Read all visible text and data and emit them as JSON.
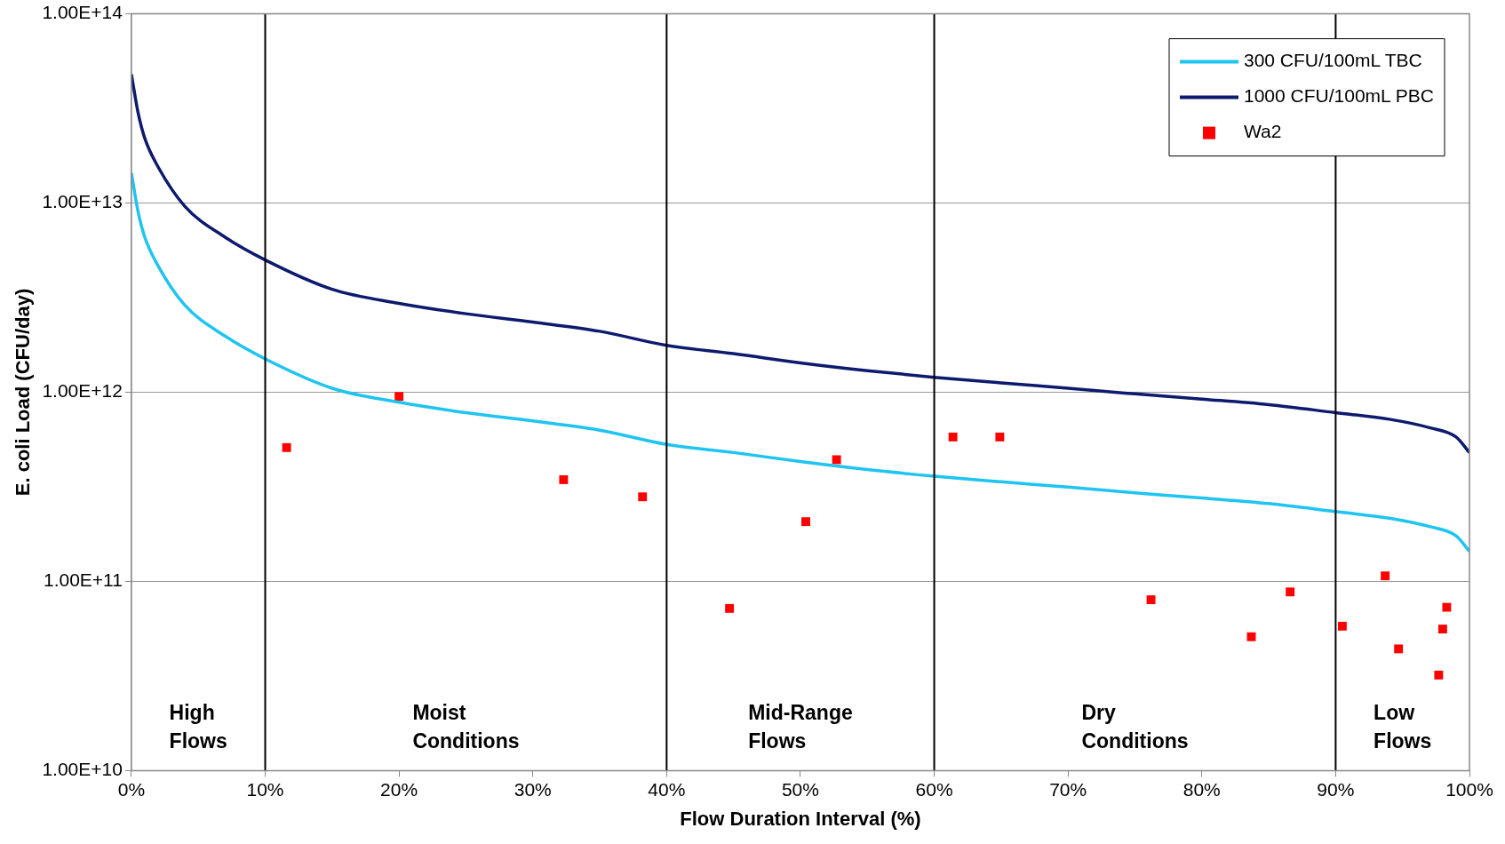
{
  "chart_data": {
    "type": "line",
    "xlabel": "Flow Duration Interval (%)",
    "ylabel": "E. coli Load (CFU/day)",
    "xlim": [
      0,
      100
    ],
    "xticks": [
      {
        "value": 0,
        "label": "0%"
      },
      {
        "value": 10,
        "label": "10%"
      },
      {
        "value": 20,
        "label": "20%"
      },
      {
        "value": 30,
        "label": "30%"
      },
      {
        "value": 40,
        "label": "40%"
      },
      {
        "value": 50,
        "label": "50%"
      },
      {
        "value": 60,
        "label": "60%"
      },
      {
        "value": 70,
        "label": "70%"
      },
      {
        "value": 80,
        "label": "80%"
      },
      {
        "value": 90,
        "label": "90%"
      },
      {
        "value": 100,
        "label": "100%"
      }
    ],
    "ylim": [
      10000000000.0,
      100000000000000.0
    ],
    "yticks": [
      {
        "value": 10000000000.0,
        "label": "1.00E+10"
      },
      {
        "value": 100000000000.0,
        "label": "1.00E+11"
      },
      {
        "value": 1000000000000.0,
        "label": "1.00E+12"
      },
      {
        "value": 10000000000000.0,
        "label": "1.00E+13"
      },
      {
        "value": 100000000000000.0,
        "label": "1.00E+14"
      }
    ],
    "log": "y",
    "grid": "y",
    "legend": "top right",
    "series": [
      {
        "name": "300 CFU/100mL TBC",
        "type": "line",
        "color": "#1fc4f0",
        "x": [
          0,
          0.5,
          1,
          2,
          4,
          7,
          10,
          15,
          20,
          25,
          30,
          35,
          40,
          45,
          50,
          55,
          60,
          65,
          70,
          75,
          80,
          85,
          90,
          94,
          97,
          99,
          100
        ],
        "values": [
          14400000000000.0,
          9000000000000.0,
          6600000000000.0,
          4650000000000.0,
          2880000000000.0,
          1980000000000.0,
          1500000000000.0,
          1050000000000.0,
          885000000000.0,
          780000000000.0,
          705000000000.0,
          630000000000.0,
          530000000000.0,
          480000000000.0,
          430000000000.0,
          390000000000.0,
          360000000000.0,
          336000000000.0,
          315000000000.0,
          294000000000.0,
          276000000000.0,
          258000000000.0,
          234000000000.0,
          216000000000.0,
          195000000000.0,
          174000000000.0,
          144000000000.0
        ]
      },
      {
        "name": "1000 CFU/100mL PBC",
        "type": "line",
        "color": "#0d1a6e",
        "x": [
          0,
          0.5,
          1,
          2,
          4,
          7,
          10,
          15,
          20,
          25,
          30,
          35,
          40,
          45,
          50,
          55,
          60,
          65,
          70,
          75,
          80,
          85,
          90,
          94,
          97,
          99,
          100
        ],
        "values": [
          48000000000000.0,
          30000000000000.0,
          22000000000000.0,
          15500000000000.0,
          9600000000000.0,
          6600000000000.0,
          5000000000000.0,
          3500000000000.0,
          2950000000000.0,
          2600000000000.0,
          2350000000000.0,
          2100000000000.0,
          1770000000000.0,
          1600000000000.0,
          1430000000000.0,
          1300000000000.0,
          1200000000000.0,
          1120000000000.0,
          1050000000000.0,
          980000000000.0,
          920000000000.0,
          860000000000.0,
          780000000000.0,
          720000000000.0,
          650000000000.0,
          580000000000.0,
          480000000000.0
        ]
      },
      {
        "name": "Wa2",
        "type": "scatter",
        "marker": "square",
        "color": "#ff0000",
        "x": [
          11.6,
          20,
          32.3,
          38.2,
          44.7,
          50.4,
          52.7,
          61.4,
          64.9,
          76.2,
          83.7,
          86.6,
          90.5,
          93.7,
          94.7,
          97.7,
          98,
          98.3
        ],
        "values": [
          510000000000.0,
          950000000000.0,
          345000000000.0,
          280000000000.0,
          72000000000.0,
          207000000000.0,
          440000000000.0,
          580000000000.0,
          580000000000.0,
          80000000000.0,
          51000000000.0,
          88000000000.0,
          58000000000.0,
          107000000000.0,
          44000000000.0,
          32000000000.0,
          56000000000.0,
          73000000000.0
        ]
      }
    ],
    "ref_lines": [
      {
        "axis": "x",
        "value": 10,
        "color": "#000000"
      },
      {
        "axis": "x",
        "value": 40,
        "color": "#000000"
      },
      {
        "axis": "x",
        "value": 60,
        "color": "#000000"
      },
      {
        "axis": "x",
        "value": 90,
        "color": "#000000"
      }
    ],
    "annotations": [
      "High\nFlows",
      "Moist\nConditions",
      "Mid-Range\nFlows",
      "Dry\nConditions",
      "Low\nFlows"
    ]
  }
}
